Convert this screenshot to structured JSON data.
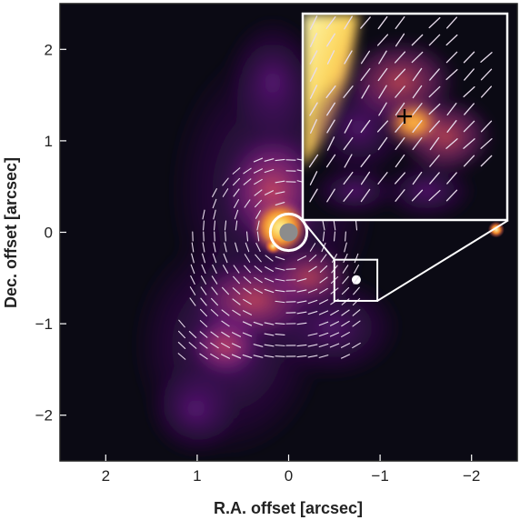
{
  "chart_data": {
    "type": "heatmap",
    "xlabel": "R.A. offset [arcsec]",
    "ylabel": "Dec. offset [arcsec]",
    "xlim": [
      2.5,
      -2.5
    ],
    "ylim": [
      -2.5,
      2.5
    ],
    "x_ticks": [
      {
        "value": 2,
        "label": "2"
      },
      {
        "value": 1,
        "label": "1"
      },
      {
        "value": 0,
        "label": "0"
      },
      {
        "value": -1,
        "label": "−1"
      },
      {
        "value": -2,
        "label": "−2"
      }
    ],
    "y_ticks": [
      {
        "value": 2,
        "label": "2"
      },
      {
        "value": 1,
        "label": "1"
      },
      {
        "value": 0,
        "label": "0"
      },
      {
        "value": -1,
        "label": "−1"
      },
      {
        "value": -2,
        "label": "−2"
      }
    ],
    "colormap": [
      "#0b0a14",
      "#2a0a3a",
      "#5b137a",
      "#9b2a8a",
      "#d94f5a",
      "#f58a2a",
      "#fcd45a",
      "#fcf8b0"
    ],
    "mask": {
      "x": 0,
      "y": 0,
      "radius": 0.1,
      "color": "#8c8c8c"
    },
    "ring": {
      "x": 0,
      "y": 0,
      "radius": 0.2,
      "color": "#ffffff"
    },
    "point_sources": [
      {
        "x": -2.27,
        "y": 0.03,
        "brightness": "bright"
      },
      {
        "x": 0.17,
        "y": -0.15,
        "brightness": "bright"
      },
      {
        "x": -0.74,
        "y": -0.52,
        "brightness": "compact"
      }
    ],
    "zoom_box": {
      "x_range": [
        -0.97,
        -0.5
      ],
      "y_range": [
        -0.75,
        -0.3
      ],
      "color": "#ffffff"
    },
    "inset": {
      "x_range": [
        -2.4,
        -0.15
      ],
      "y_range": [
        0.13,
        2.4
      ],
      "marker": "cross"
    },
    "polarization_vector_color": "#e8dcec"
  }
}
